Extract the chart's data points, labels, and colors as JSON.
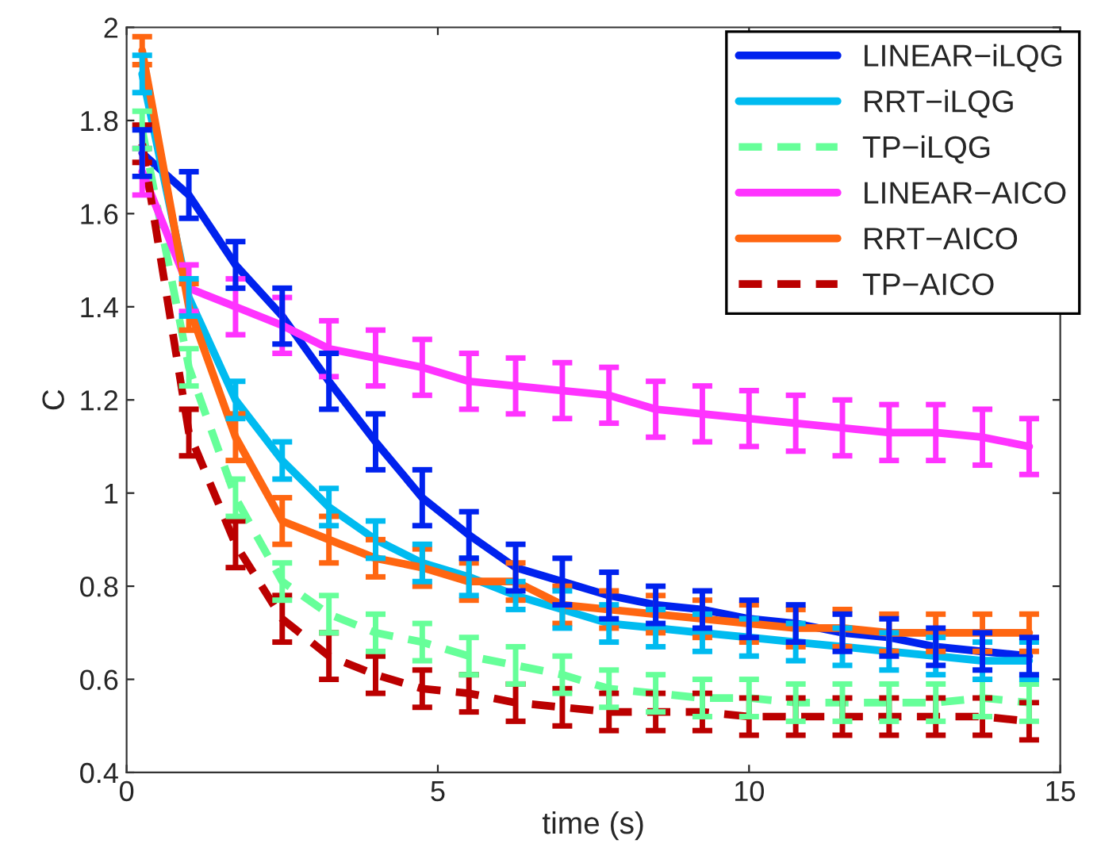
{
  "chart_data": {
    "type": "line",
    "xlabel": "time (s)",
    "ylabel": "C",
    "x": [
      0.25,
      1.0,
      1.75,
      2.5,
      3.25,
      4.0,
      4.75,
      5.5,
      6.25,
      7.0,
      7.75,
      8.5,
      9.25,
      10.0,
      10.75,
      11.5,
      12.25,
      13.0,
      13.75,
      14.5
    ],
    "xlim": [
      0,
      15
    ],
    "xticks": [
      0,
      5,
      10,
      15
    ],
    "ylim": [
      0.4,
      2
    ],
    "yticks": [
      0.4,
      0.6,
      0.8,
      1,
      1.2,
      1.4,
      1.6,
      1.8,
      2
    ],
    "grid": false,
    "legend": "top right",
    "marker": "none",
    "series": [
      {
        "name": "LINEAR−iLQG",
        "color": "#0022ee",
        "line_style": "solid",
        "values": [
          1.73,
          1.64,
          1.49,
          1.38,
          1.24,
          1.11,
          0.99,
          0.91,
          0.84,
          0.81,
          0.78,
          0.76,
          0.75,
          0.73,
          0.72,
          0.7,
          0.69,
          0.67,
          0.66,
          0.65
        ],
        "errors": [
          0.05,
          0.05,
          0.05,
          0.06,
          0.06,
          0.06,
          0.06,
          0.05,
          0.05,
          0.05,
          0.05,
          0.04,
          0.04,
          0.04,
          0.04,
          0.04,
          0.04,
          0.04,
          0.04,
          0.04
        ]
      },
      {
        "name": "RRT−iLQG",
        "color": "#00bbf0",
        "line_style": "solid",
        "values": [
          1.9,
          1.42,
          1.2,
          1.07,
          0.97,
          0.9,
          0.85,
          0.82,
          0.78,
          0.75,
          0.72,
          0.71,
          0.7,
          0.69,
          0.68,
          0.67,
          0.66,
          0.65,
          0.64,
          0.64
        ],
        "errors": [
          0.04,
          0.04,
          0.04,
          0.04,
          0.04,
          0.04,
          0.04,
          0.04,
          0.03,
          0.04,
          0.04,
          0.04,
          0.04,
          0.04,
          0.04,
          0.04,
          0.04,
          0.04,
          0.04,
          0.04
        ]
      },
      {
        "name": "TP−iLQG",
        "color": "#66ff99",
        "line_style": "dashed",
        "values": [
          1.78,
          1.27,
          0.99,
          0.81,
          0.74,
          0.7,
          0.68,
          0.65,
          0.63,
          0.61,
          0.58,
          0.57,
          0.56,
          0.56,
          0.55,
          0.55,
          0.55,
          0.55,
          0.56,
          0.55
        ],
        "errors": [
          0.04,
          0.04,
          0.04,
          0.04,
          0.04,
          0.04,
          0.04,
          0.04,
          0.04,
          0.04,
          0.04,
          0.04,
          0.04,
          0.04,
          0.04,
          0.04,
          0.04,
          0.04,
          0.04,
          0.04
        ]
      },
      {
        "name": "LINEAR−AICO",
        "color": "#ff33ff",
        "line_style": "solid",
        "values": [
          1.69,
          1.44,
          1.4,
          1.36,
          1.31,
          1.29,
          1.27,
          1.24,
          1.23,
          1.22,
          1.21,
          1.18,
          1.17,
          1.16,
          1.15,
          1.14,
          1.13,
          1.13,
          1.12,
          1.1
        ],
        "errors": [
          0.05,
          0.05,
          0.06,
          0.06,
          0.06,
          0.06,
          0.06,
          0.06,
          0.06,
          0.06,
          0.06,
          0.06,
          0.06,
          0.06,
          0.06,
          0.06,
          0.06,
          0.06,
          0.06,
          0.06
        ]
      },
      {
        "name": "RRT−AICO",
        "color": "#ff6611",
        "line_style": "solid",
        "values": [
          1.95,
          1.4,
          1.12,
          0.94,
          0.9,
          0.86,
          0.84,
          0.81,
          0.81,
          0.76,
          0.75,
          0.74,
          0.73,
          0.72,
          0.71,
          0.71,
          0.7,
          0.7,
          0.7,
          0.7
        ],
        "errors": [
          0.03,
          0.05,
          0.05,
          0.05,
          0.05,
          0.04,
          0.04,
          0.04,
          0.04,
          0.04,
          0.04,
          0.04,
          0.04,
          0.04,
          0.04,
          0.04,
          0.04,
          0.04,
          0.04,
          0.04
        ]
      },
      {
        "name": "TP−AICO",
        "color": "#bb0000",
        "line_style": "dashed",
        "values": [
          1.75,
          1.13,
          0.89,
          0.73,
          0.65,
          0.61,
          0.58,
          0.57,
          0.55,
          0.54,
          0.53,
          0.53,
          0.53,
          0.52,
          0.52,
          0.52,
          0.52,
          0.52,
          0.52,
          0.51
        ],
        "errors": [
          0.04,
          0.05,
          0.05,
          0.05,
          0.05,
          0.04,
          0.04,
          0.04,
          0.04,
          0.04,
          0.04,
          0.04,
          0.04,
          0.04,
          0.04,
          0.04,
          0.04,
          0.04,
          0.04,
          0.04
        ]
      }
    ]
  }
}
